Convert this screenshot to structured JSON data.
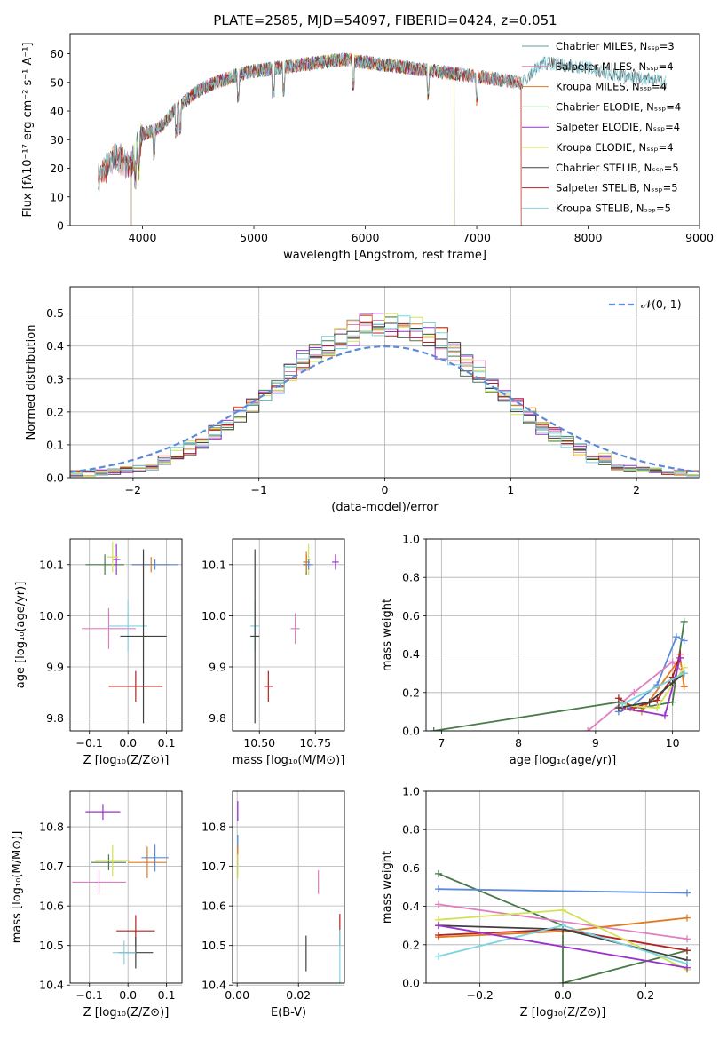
{
  "figure": {
    "title": "PLATE=2585, MJD=54097, FIBERID=0424, z=0.051"
  },
  "colors": {
    "chabrier_miles": "#5f9ea0",
    "salpeter_miles": "#e07fbf",
    "kroupa_miles": "#e07b20",
    "chabrier_elodie": "#4a7a4a",
    "salpeter_elodie": "#9932cc",
    "kroupa_elodie": "#d4e157",
    "chabrier_stelib": "#404040",
    "salpeter_stelib": "#b22222",
    "kroupa_stelib": "#7fd3e0",
    "normal_curve": "#5b8bd9"
  },
  "chart_data": [
    {
      "id": "spectrum",
      "type": "line",
      "xlabel": "wavelength [Angstrom, rest frame]",
      "ylabel": "Flux [fλ10⁻¹⁷ erg cm⁻² s⁻¹ A⁻¹]",
      "xlim": [
        3350,
        9000
      ],
      "ylim": [
        0,
        67
      ],
      "xticks": [
        4000,
        5000,
        6000,
        7000,
        8000,
        9000
      ],
      "yticks": [
        0,
        10,
        20,
        30,
        40,
        50,
        60
      ],
      "grid": false,
      "legend_position": "top-right",
      "legend": [
        {
          "label": "Chabrier MILES, Nₛₛₚ=3",
          "color": "#5f9ea0"
        },
        {
          "label": "Salpeter MILES, Nₛₛₚ=4",
          "color": "#e07fbf"
        },
        {
          "label": "Kroupa MILES, Nₛₛₚ=4",
          "color": "#e07b20"
        },
        {
          "label": "Chabrier ELODIE, Nₛₛₚ=4",
          "color": "#4a7a4a"
        },
        {
          "label": "Salpeter ELODIE, Nₛₛₚ=4",
          "color": "#9932cc"
        },
        {
          "label": "Kroupa ELODIE, Nₛₛₚ=4",
          "color": "#d4e157"
        },
        {
          "label": "Chabrier STELIB, Nₛₛₚ=5",
          "color": "#404040"
        },
        {
          "label": "Salpeter STELIB, Nₛₛₚ=5",
          "color": "#b22222"
        },
        {
          "label": "Kroupa STELIB, Nₛₛₚ=5",
          "color": "#7fd3e0"
        }
      ],
      "continuum": {
        "x": [
          3600,
          3700,
          3800,
          3900,
          3950,
          4000,
          4100,
          4200,
          4300,
          4400,
          4500,
          4600,
          4800,
          5000,
          5200,
          5400,
          5600,
          5800,
          6000,
          6200,
          6400,
          6600,
          6800,
          7000,
          7200,
          7400,
          7600,
          7800,
          8000,
          8200,
          8400,
          8700
        ],
        "y": [
          16,
          22,
          24,
          21,
          27,
          32,
          33,
          36,
          41,
          44,
          47,
          49,
          52,
          54,
          55,
          56,
          57,
          58,
          57,
          56,
          55,
          54,
          53,
          52,
          51,
          50,
          57,
          56,
          55,
          53,
          52,
          50
        ]
      },
      "series_extent": [
        {
          "name": "Chabrier MILES",
          "x": [
            3600,
            7400
          ]
        },
        {
          "name": "Salpeter MILES",
          "x": [
            3600,
            7400
          ]
        },
        {
          "name": "Kroupa MILES",
          "x": [
            3600,
            7400
          ]
        },
        {
          "name": "Chabrier ELODIE",
          "x": [
            3900,
            6800
          ]
        },
        {
          "name": "Salpeter ELODIE",
          "x": [
            3900,
            6800
          ]
        },
        {
          "name": "Kroupa ELODIE",
          "x": [
            3900,
            6800
          ]
        },
        {
          "name": "Chabrier STELIB",
          "x": [
            3600,
            8700
          ]
        },
        {
          "name": "Salpeter STELIB",
          "x": [
            3600,
            7400
          ]
        },
        {
          "name": "Kroupa STELIB",
          "x": [
            3600,
            8700
          ]
        }
      ]
    },
    {
      "id": "residuals",
      "type": "line",
      "xlabel": "(data-model)/error",
      "ylabel": "Normed distribution",
      "xlim": [
        -2.5,
        2.5
      ],
      "ylim": [
        0,
        0.58
      ],
      "xticks": [
        -2,
        -1,
        0,
        1,
        2
      ],
      "yticks": [
        0.0,
        0.1,
        0.2,
        0.3,
        0.4,
        0.5
      ],
      "grid": true,
      "legend_position": "top-right",
      "legend": [
        {
          "label": "𝒩(0, 1)",
          "color": "#5b8bd9"
        }
      ],
      "bin_width": 0.1,
      "note_series": "step histograms of nine models scattered around N(0,1)"
    },
    {
      "id": "age-vs-z",
      "type": "scatter",
      "xlabel": "Z [log₁₀(Z/Z⊙)]",
      "ylabel": "age  [log₁₀(age/yr)]",
      "xlim": [
        -0.15,
        0.14
      ],
      "ylim": [
        9.775,
        10.15
      ],
      "xticks": [
        -0.1,
        0.0,
        0.1
      ],
      "yticks": [
        9.8,
        9.9,
        10.0,
        10.1
      ],
      "grid": true,
      "points": [
        {
          "x": -0.06,
          "y": 10.1,
          "ex": 0.05,
          "ey": 0.02,
          "color": "#4a7a4a"
        },
        {
          "x": -0.03,
          "y": 10.11,
          "ex": 0.01,
          "ey": 0.03,
          "color": "#9932cc"
        },
        {
          "x": -0.04,
          "y": 10.115,
          "ex": 0.015,
          "ey": 0.03,
          "color": "#d4e157"
        },
        {
          "x": 0.06,
          "y": 10.1,
          "ex": 0.05,
          "ey": 0.015,
          "color": "#e07b20"
        },
        {
          "x": 0.07,
          "y": 10.1,
          "ex": 0.06,
          "ey": 0.01,
          "color": "#5b8bd9"
        },
        {
          "x": -0.05,
          "y": 9.975,
          "ex": 0.07,
          "ey": 0.04,
          "color": "#e07fbf"
        },
        {
          "x": 0.0,
          "y": 9.98,
          "ex": 0.05,
          "ey": 0.05,
          "color": "#7fd3e0"
        },
        {
          "x": 0.04,
          "y": 9.96,
          "ex": 0.06,
          "ey": 0.17,
          "color": "#404040"
        },
        {
          "x": 0.02,
          "y": 9.862,
          "ex": 0.07,
          "ey": 0.03,
          "color": "#b22222"
        }
      ]
    },
    {
      "id": "age-vs-mass",
      "type": "scatter",
      "xlabel": "mass [log₁₀(M/M⊙)]",
      "ylabel": "",
      "xlim": [
        10.38,
        10.88
      ],
      "ylim": [
        9.775,
        10.15
      ],
      "xticks": [
        10.5,
        10.75
      ],
      "yticks": [
        9.8,
        9.9,
        10.0,
        10.1
      ],
      "grid": true,
      "points": [
        {
          "x": 10.71,
          "y": 10.1,
          "ex": 0.015,
          "ey": 0.02,
          "color": "#4a7a4a"
        },
        {
          "x": 10.84,
          "y": 10.105,
          "ex": 0.015,
          "ey": 0.015,
          "color": "#9932cc"
        },
        {
          "x": 10.72,
          "y": 10.11,
          "ex": 0.01,
          "ey": 0.03,
          "color": "#d4e157"
        },
        {
          "x": 10.71,
          "y": 10.105,
          "ex": 0.015,
          "ey": 0.02,
          "color": "#e07b20"
        },
        {
          "x": 10.72,
          "y": 10.1,
          "ex": 0.02,
          "ey": 0.01,
          "color": "#5b8bd9"
        },
        {
          "x": 10.66,
          "y": 9.975,
          "ex": 0.02,
          "ey": 0.03,
          "color": "#e07fbf"
        },
        {
          "x": 10.48,
          "y": 9.98,
          "ex": 0.02,
          "ey": 0.05,
          "color": "#7fd3e0"
        },
        {
          "x": 10.48,
          "y": 9.96,
          "ex": 0.02,
          "ey": 0.17,
          "color": "#404040"
        },
        {
          "x": 10.54,
          "y": 9.862,
          "ex": 0.02,
          "ey": 0.03,
          "color": "#b22222"
        }
      ]
    },
    {
      "id": "mass-weight-vs-age",
      "type": "line",
      "xlabel": "age  [log₁₀(age/yr)]",
      "ylabel": "mass weight",
      "xlim": [
        6.8,
        10.35
      ],
      "ylim": [
        0,
        1.0
      ],
      "xticks": [
        7,
        8,
        9,
        10
      ],
      "yticks": [
        0.0,
        0.2,
        0.4,
        0.6,
        0.8,
        1.0
      ],
      "grid": true,
      "series": [
        {
          "name": "Chabrier ELODIE",
          "color": "#4a7a4a",
          "x": [
            6.9,
            9.3,
            9.6,
            10.0,
            10.15
          ],
          "y": [
            0.0,
            0.15,
            0.12,
            0.15,
            0.57
          ]
        },
        {
          "name": "Kroupa STELIB",
          "color": "#5b8bd9",
          "x": [
            9.3,
            9.45,
            9.8,
            10.05,
            10.15
          ],
          "y": [
            0.1,
            0.12,
            0.24,
            0.49,
            0.47
          ]
        },
        {
          "name": "Salpeter MILES",
          "color": "#e07fbf",
          "x": [
            8.9,
            9.5,
            10.0,
            10.15
          ],
          "y": [
            0.0,
            0.2,
            0.36,
            0.3
          ]
        },
        {
          "name": "Kroupa MILES",
          "color": "#e07b20",
          "x": [
            9.3,
            9.6,
            10.1,
            10.15
          ],
          "y": [
            0.12,
            0.1,
            0.38,
            0.23
          ]
        },
        {
          "name": "Salpeter STELIB",
          "color": "#b22222",
          "x": [
            9.3,
            9.5,
            9.8,
            10.0,
            10.1
          ],
          "y": [
            0.17,
            0.12,
            0.16,
            0.28,
            0.4
          ]
        },
        {
          "name": "Salpeter ELODIE",
          "color": "#9932cc",
          "x": [
            9.35,
            9.9,
            10.1
          ],
          "y": [
            0.12,
            0.08,
            0.38
          ]
        },
        {
          "name": "Kroupa ELODIE",
          "color": "#d4e157",
          "x": [
            9.4,
            9.8,
            10.15
          ],
          "y": [
            0.13,
            0.12,
            0.33
          ]
        },
        {
          "name": "Chabrier STELIB",
          "color": "#404040",
          "x": [
            9.3,
            9.7,
            10.0,
            10.15
          ],
          "y": [
            0.12,
            0.15,
            0.25,
            0.3
          ]
        },
        {
          "name": "Kroupa STELIB 2",
          "color": "#7fd3e0",
          "x": [
            9.35,
            10.15
          ],
          "y": [
            0.14,
            0.3
          ]
        }
      ]
    },
    {
      "id": "mass-vs-z",
      "type": "scatter",
      "xlabel": "Z [log₁₀(Z/Z⊙)]",
      "ylabel": "mass [log₁₀(M/M⊙)]",
      "xlim": [
        -0.15,
        0.14
      ],
      "ylim": [
        10.405,
        10.89
      ],
      "xticks": [
        -0.1,
        0.0,
        0.1
      ],
      "yticks": [
        10.4,
        10.5,
        10.6,
        10.7,
        10.8
      ],
      "grid": true,
      "points": [
        {
          "x": -0.065,
          "y": 10.838,
          "ex": 0.045,
          "ey": 0.02,
          "color": "#9932cc"
        },
        {
          "x": -0.05,
          "y": 10.71,
          "ex": 0.045,
          "ey": 0.02,
          "color": "#4a7a4a"
        },
        {
          "x": -0.04,
          "y": 10.715,
          "ex": 0.045,
          "ey": 0.04,
          "color": "#d4e157"
        },
        {
          "x": 0.05,
          "y": 10.71,
          "ex": 0.05,
          "ey": 0.04,
          "color": "#e07b20"
        },
        {
          "x": 0.07,
          "y": 10.722,
          "ex": 0.035,
          "ey": 0.035,
          "color": "#5b8bd9"
        },
        {
          "x": -0.075,
          "y": 10.66,
          "ex": 0.07,
          "ey": 0.03,
          "color": "#e07fbf"
        },
        {
          "x": 0.02,
          "y": 10.537,
          "ex": 0.05,
          "ey": 0.04,
          "color": "#b22222"
        },
        {
          "x": 0.02,
          "y": 10.482,
          "ex": 0.045,
          "ey": 0.04,
          "color": "#404040"
        },
        {
          "x": -0.01,
          "y": 10.482,
          "ex": 0.03,
          "ey": 0.03,
          "color": "#7fd3e0"
        }
      ]
    },
    {
      "id": "mass-vs-ebv",
      "type": "scatter",
      "xlabel": "E(B-V)",
      "ylabel": "",
      "xlim": [
        -0.0015,
        0.035
      ],
      "ylim": [
        10.405,
        10.89
      ],
      "xticks": [
        0.0,
        0.02
      ],
      "yticks": [
        10.4,
        10.5,
        10.6,
        10.7,
        10.8
      ],
      "grid": true,
      "points": [
        {
          "x": 0.0002,
          "y": 10.84,
          "ex": 0.0,
          "ey": 0.025,
          "color": "#9932cc"
        },
        {
          "x": 0.0002,
          "y": 10.76,
          "ex": 0.0,
          "ey": 0.02,
          "color": "#5b8bd9"
        },
        {
          "x": 0.0002,
          "y": 10.72,
          "ex": 0.0,
          "ey": 0.035,
          "color": "#e07b20"
        },
        {
          "x": 0.0002,
          "y": 10.7,
          "ex": 0.0,
          "ey": 0.03,
          "color": "#d4e157"
        },
        {
          "x": 0.0265,
          "y": 10.66,
          "ex": 0.0,
          "ey": 0.03,
          "color": "#e07fbf"
        },
        {
          "x": 0.0335,
          "y": 10.54,
          "ex": 0.0,
          "ey": 0.04,
          "color": "#b22222"
        },
        {
          "x": 0.0225,
          "y": 10.48,
          "ex": 0.0,
          "ey": 0.045,
          "color": "#404040"
        },
        {
          "x": 0.0335,
          "y": 10.47,
          "ex": 0.0,
          "ey": 0.07,
          "color": "#7fd3e0"
        }
      ]
    },
    {
      "id": "mass-weight-vs-z",
      "type": "line",
      "xlabel": "Z [log₁₀(Z/Z⊙)]",
      "ylabel": "mass weight",
      "xlim": [
        -0.33,
        0.33
      ],
      "ylim": [
        0,
        1.0
      ],
      "xticks": [
        -0.2,
        0.0,
        0.2
      ],
      "yticks": [
        0.0,
        0.2,
        0.4,
        0.6,
        0.8,
        1.0
      ],
      "grid": true,
      "series": [
        {
          "name": "Chabrier ELODIE",
          "color": "#4a7a4a",
          "x": [
            -0.3,
            0.0,
            0.0,
            0.3
          ],
          "y": [
            0.57,
            0.3,
            0.0,
            0.17
          ]
        },
        {
          "name": "Kroupa STELIB",
          "color": "#5b8bd9",
          "x": [
            -0.3,
            0.3
          ],
          "y": [
            0.49,
            0.47
          ]
        },
        {
          "name": "Salpeter MILES",
          "color": "#e07fbf",
          "x": [
            -0.3,
            0.3
          ],
          "y": [
            0.41,
            0.23
          ]
        },
        {
          "name": "Kroupa MILES",
          "color": "#e07b20",
          "x": [
            -0.3,
            0.0,
            0.3
          ],
          "y": [
            0.24,
            0.27,
            0.34
          ]
        },
        {
          "name": "Salpeter STELIB",
          "color": "#b22222",
          "x": [
            -0.3,
            0.0,
            0.3
          ],
          "y": [
            0.25,
            0.28,
            0.17
          ]
        },
        {
          "name": "Kroupa ELODIE",
          "color": "#d4e157",
          "x": [
            -0.3,
            0.0,
            0.3
          ],
          "y": [
            0.33,
            0.38,
            0.07
          ]
        },
        {
          "name": "Chabrier STELIB",
          "color": "#404040",
          "x": [
            -0.3,
            0.0,
            0.3
          ],
          "y": [
            0.3,
            0.28,
            0.12
          ]
        },
        {
          "name": "Kroupa STELIB 2",
          "color": "#7fd3e0",
          "x": [
            -0.3,
            0.0,
            0.3
          ],
          "y": [
            0.14,
            0.3,
            0.1
          ]
        },
        {
          "name": "Salpeter ELODIE",
          "color": "#9932cc",
          "x": [
            -0.3,
            0.3
          ],
          "y": [
            0.3,
            0.08
          ]
        }
      ]
    }
  ]
}
